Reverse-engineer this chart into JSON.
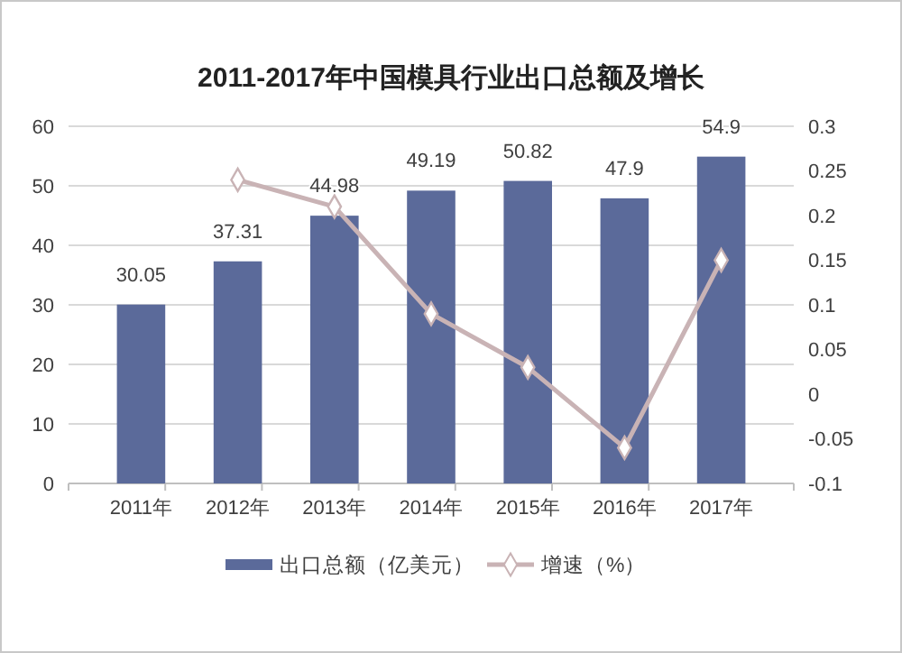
{
  "chart_data": {
    "type": "bar",
    "title": "2011-2017年中国模具行业出口总额及增长",
    "categories": [
      "2011年",
      "2012年",
      "2013年",
      "2014年",
      "2015年",
      "2016年",
      "2017年"
    ],
    "series": [
      {
        "name": "出口总额（亿美元）",
        "color": "#5b6a9a",
        "values": [
          30.05,
          37.31,
          44.98,
          49.19,
          50.82,
          47.9,
          54.9
        ],
        "value_labels": [
          "30.05",
          "37.31",
          "44.98",
          "49.19",
          "50.82",
          "47.9",
          "54.9"
        ]
      },
      {
        "name": "增速（%）",
        "type": "line",
        "axis": "y2",
        "color": "#c9b3b5",
        "marker": "diamond",
        "values": [
          null,
          0.24,
          0.21,
          0.09,
          0.03,
          -0.06,
          0.15
        ]
      }
    ],
    "ylim": [
      0,
      60
    ],
    "yticks": [
      0,
      10,
      20,
      30,
      40,
      50,
      60
    ],
    "y2lim": [
      -0.1,
      0.3
    ],
    "y2ticks": [
      -0.1,
      -0.05,
      0,
      0.05,
      0.1,
      0.15,
      0.2,
      0.25,
      0.3
    ],
    "grid": "y",
    "legend": "bottom"
  }
}
